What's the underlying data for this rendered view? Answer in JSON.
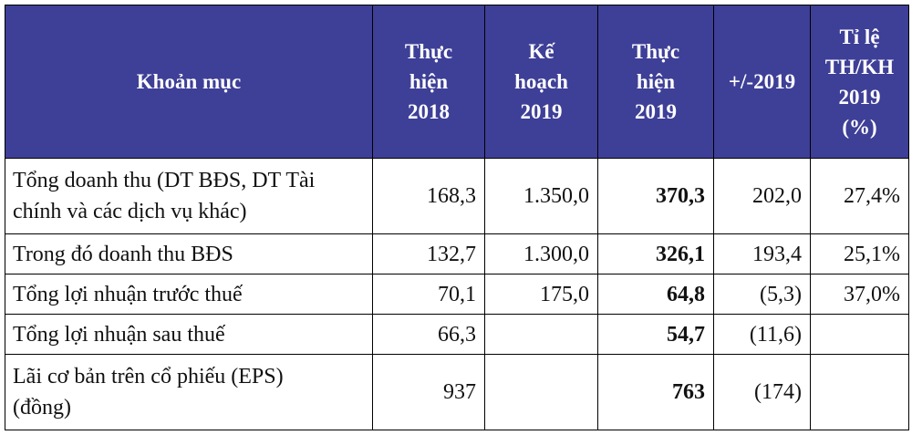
{
  "table": {
    "headers": {
      "col0": "Khoản mục",
      "col1": [
        "Thực",
        "hiện",
        "2018"
      ],
      "col2": [
        "Kế",
        "hoạch",
        "2019"
      ],
      "col3": [
        "Thực",
        "hiện",
        "2019"
      ],
      "col4": "+/-2019",
      "col5": [
        "Tỉ lệ",
        "TH/KH",
        "2019",
        "(%)"
      ]
    },
    "rows": [
      {
        "label_line1": "Tổng doanh thu (DT BĐS, DT Tài",
        "label_line2": "chính và các dịch vụ khác)",
        "th2018": "168,3",
        "kh2019": "1.350,0",
        "th2019": "370,3",
        "change": "202,0",
        "ratio": "27,4%"
      },
      {
        "label": "Trong đó doanh thu BĐS",
        "th2018": "132,7",
        "kh2019": "1.300,0",
        "th2019": "326,1",
        "change": "193,4",
        "ratio": "25,1%"
      },
      {
        "label": "Tổng lợi nhuận trước thuế",
        "th2018": "70,1",
        "kh2019": "175,0",
        "th2019": "64,8",
        "change": "(5,3)",
        "ratio": "37,0%"
      },
      {
        "label": "Tổng lợi nhuận sau thuế",
        "th2018": "66,3",
        "kh2019": "",
        "th2019": "54,7",
        "change": "(11,6)",
        "ratio": ""
      },
      {
        "label_line1": "Lãi cơ bản trên cổ phiếu (EPS)",
        "label_line2": "(đồng)",
        "th2018": "937",
        "kh2019": "",
        "th2019": "763",
        "change": "(174)",
        "ratio": ""
      }
    ]
  },
  "colors": {
    "header_bg": "#3e3f97",
    "header_text": "#ffffff",
    "border": "#000000"
  }
}
